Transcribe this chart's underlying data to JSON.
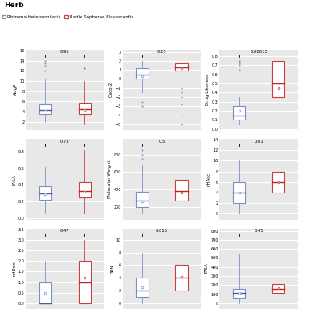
{
  "title": "Herb",
  "legend": {
    "herb1": "Rhizoma Heterosmilacis",
    "herb2": "Radix Sophorae Flavescentis",
    "color1": "#7b8fc4",
    "color2": "#c94040"
  },
  "subplots": [
    {
      "label": "AlogP",
      "pval": "0.95",
      "row": 0,
      "col": 0,
      "blue": {
        "q1": 3.5,
        "median": 4.3,
        "q3": 5.5,
        "whislo": 2.0,
        "whishi": 10.5,
        "mean": 4.2,
        "fliers": [
          12.0,
          13.0,
          13.5,
          14.0
        ]
      },
      "red": {
        "q1": 3.5,
        "median": 4.5,
        "q3": 5.8,
        "whislo": 1.5,
        "whishi": 10.0,
        "mean": 4.4,
        "fliers": [
          12.5
        ]
      }
    },
    {
      "label": "Caco-2",
      "pval": "0.25",
      "row": 0,
      "col": 1,
      "blue": {
        "q1": 0.0,
        "median": 0.5,
        "q3": 1.2,
        "whislo": -1.5,
        "whishi": 2.0,
        "mean": 0.3,
        "fliers": [
          -2.5,
          -3.0
        ]
      },
      "red": {
        "q1": 0.9,
        "median": 1.3,
        "q3": 1.7,
        "whislo": 0.0,
        "whishi": 2.0,
        "mean": 1.2,
        "fliers": [
          -1.0,
          -1.5,
          -2.0,
          -2.8,
          -4.0,
          -5.0
        ]
      }
    },
    {
      "label": "Drug Likeness",
      "pval": "0.00013",
      "row": 0,
      "col": 2,
      "blue": {
        "q1": 0.1,
        "median": 0.15,
        "q3": 0.25,
        "whislo": 0.05,
        "whishi": 0.35,
        "mean": 0.2,
        "fliers": [
          0.65,
          0.7,
          0.72,
          0.74,
          0.75
        ]
      },
      "red": {
        "q1": 0.35,
        "median": 0.5,
        "q3": 0.75,
        "whislo": 0.1,
        "whishi": 0.75,
        "mean": 0.45,
        "fliers": []
      }
    },
    {
      "label": "FASA-",
      "pval": "0.73",
      "row": 1,
      "col": 0,
      "blue": {
        "q1": 0.22,
        "median": 0.3,
        "q3": 0.38,
        "whislo": 0.05,
        "whishi": 0.62,
        "mean": 0.29,
        "fliers": []
      },
      "red": {
        "q1": 0.25,
        "median": 0.33,
        "q3": 0.43,
        "whislo": 0.05,
        "whishi": 0.82,
        "mean": 0.32,
        "fliers": []
      }
    },
    {
      "label": "Molecular Weight",
      "pval": "0.5",
      "row": 1,
      "col": 1,
      "blue": {
        "q1": 200,
        "median": 270,
        "q3": 370,
        "whislo": 120,
        "whishi": 680,
        "mean": 265,
        "fliers": [
          750,
          800,
          850
        ]
      },
      "red": {
        "q1": 270,
        "median": 380,
        "q3": 510,
        "whislo": 130,
        "whishi": 800,
        "mean": 360,
        "fliers": []
      }
    },
    {
      "label": "nHAcc",
      "pval": "0.61",
      "row": 1,
      "col": 2,
      "blue": {
        "q1": 2,
        "median": 4,
        "q3": 6,
        "whislo": 0,
        "whishi": 10,
        "mean": 4,
        "fliers": []
      },
      "red": {
        "q1": 4,
        "median": 6,
        "q3": 8,
        "whislo": 0,
        "whishi": 12,
        "mean": 6,
        "fliers": []
      }
    },
    {
      "label": "nHDon",
      "pval": "0.47",
      "row": 2,
      "col": 0,
      "blue": {
        "q1": 0,
        "median": 0,
        "q3": 1,
        "whislo": 0,
        "whishi": 2,
        "mean": 0.5,
        "fliers": []
      },
      "red": {
        "q1": 0,
        "median": 1,
        "q3": 2,
        "whislo": 0,
        "whishi": 3,
        "mean": 1.2,
        "fliers": []
      }
    },
    {
      "label": "RBN",
      "pval": "0.015",
      "row": 2,
      "col": 1,
      "blue": {
        "q1": 1,
        "median": 2,
        "q3": 4,
        "whislo": 0,
        "whishi": 8,
        "mean": 2.5,
        "fliers": []
      },
      "red": {
        "q1": 2,
        "median": 4,
        "q3": 6,
        "whislo": 0,
        "whishi": 10,
        "mean": 4.2,
        "fliers": []
      }
    },
    {
      "label": "TPSA",
      "pval": "0.45",
      "row": 2,
      "col": 2,
      "blue": {
        "q1": 60,
        "median": 110,
        "q3": 160,
        "whislo": 0,
        "whishi": 550,
        "mean": 115,
        "fliers": []
      },
      "red": {
        "q1": 110,
        "median": 155,
        "q3": 210,
        "whislo": 0,
        "whishi": 700,
        "mean": 165,
        "fliers": []
      }
    }
  ],
  "bg_color": "#e8e8e8",
  "grid_color": "#ffffff",
  "blue_edge": "#7b8fc4",
  "blue_med": "#4a5a9a",
  "red_edge": "#c94040",
  "red_med": "#c02020"
}
